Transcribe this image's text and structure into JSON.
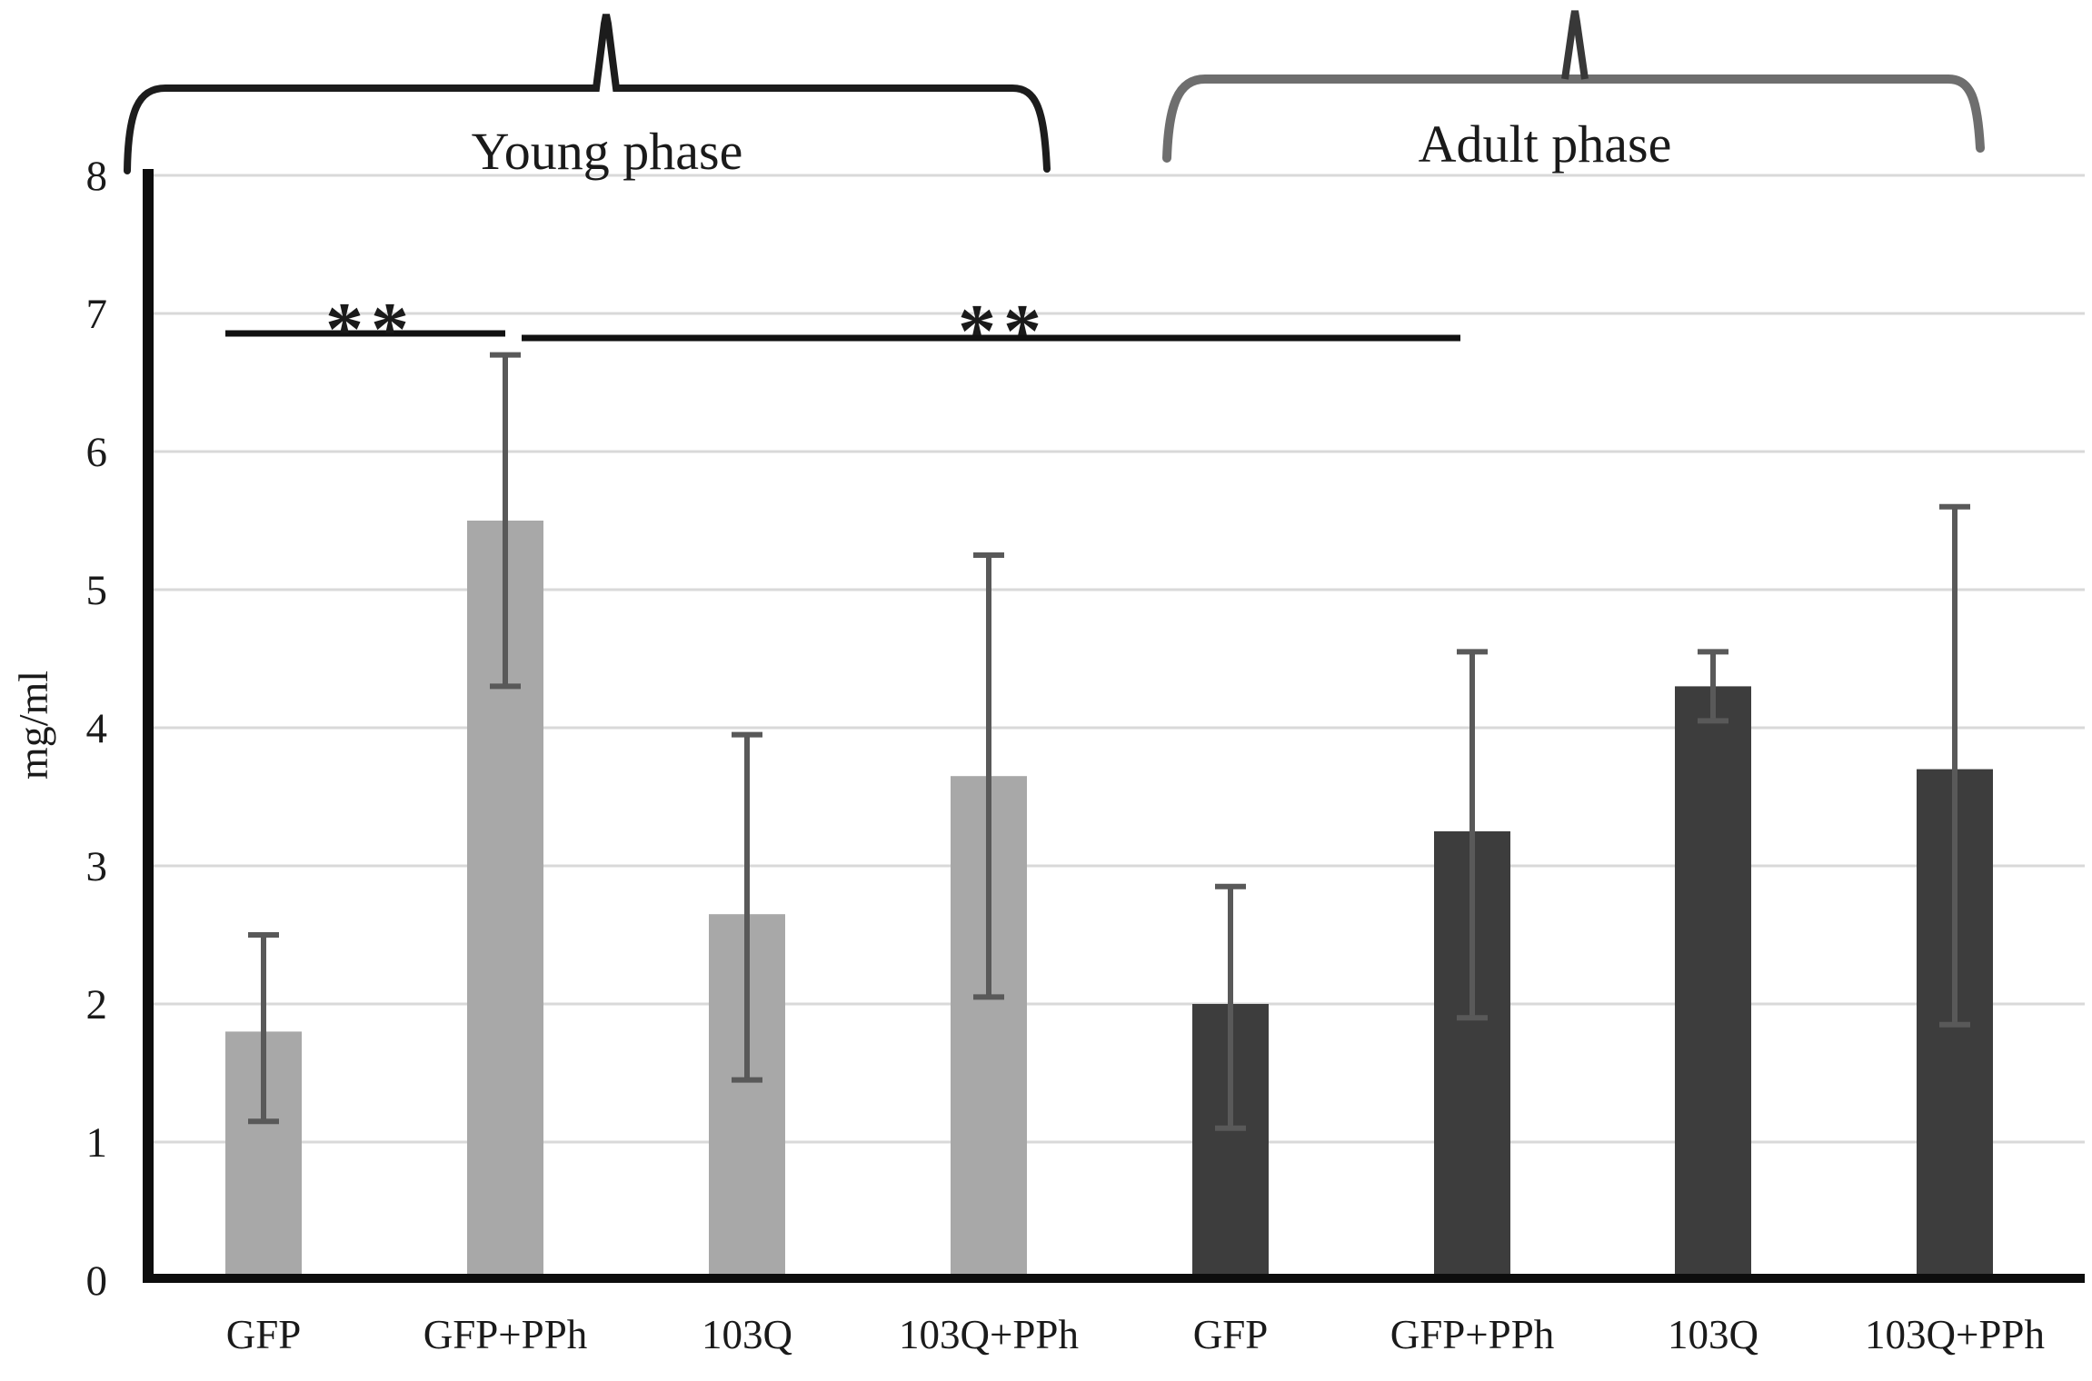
{
  "chart_data": {
    "type": "bar",
    "title": "",
    "xlabel": "",
    "ylabel": "mg/ml",
    "ylim": [
      0,
      8
    ],
    "yticks": [
      0,
      1,
      2,
      3,
      4,
      5,
      6,
      7,
      8
    ],
    "grid": true,
    "legend": "none",
    "gridline_color": "#d9d9d9",
    "axis_color": "#0d0d0d",
    "error_bar_color": "#595959",
    "groups": [
      {
        "label": "Young phase",
        "bar_color": "#a8a8a8",
        "bracket_color": "#1c1c1c",
        "bars": [
          {
            "category": "GFP",
            "value": 1.8,
            "err_low": 1.15,
            "err_high": 2.5
          },
          {
            "category": "GFP+PPh",
            "value": 5.5,
            "err_low": 4.3,
            "err_high": 6.7
          },
          {
            "category": "103Q",
            "value": 2.65,
            "err_low": 1.45,
            "err_high": 3.95
          },
          {
            "category": "103Q+PPh",
            "value": 3.65,
            "err_low": 2.05,
            "err_high": 5.25
          }
        ]
      },
      {
        "label": "Adult phase",
        "bar_color": "#3d3d3d",
        "bracket_color": "#6e6e6e",
        "bars": [
          {
            "category": "GFP",
            "value": 2.0,
            "err_low": 1.1,
            "err_high": 2.85
          },
          {
            "category": "GFP+PPh",
            "value": 3.25,
            "err_low": 1.9,
            "err_high": 4.55
          },
          {
            "category": "103Q",
            "value": 4.3,
            "err_low": 4.05,
            "err_high": 4.55
          },
          {
            "category": "103Q+PPh",
            "value": 3.7,
            "err_low": 1.85,
            "err_high": 5.6
          }
        ]
      }
    ],
    "significance": [
      {
        "label": "**",
        "comparison": "Young GFP vs Young GFP+PPh"
      },
      {
        "label": "**",
        "comparison": "Young GFP+PPh vs Adult GFP+PPh"
      }
    ]
  }
}
